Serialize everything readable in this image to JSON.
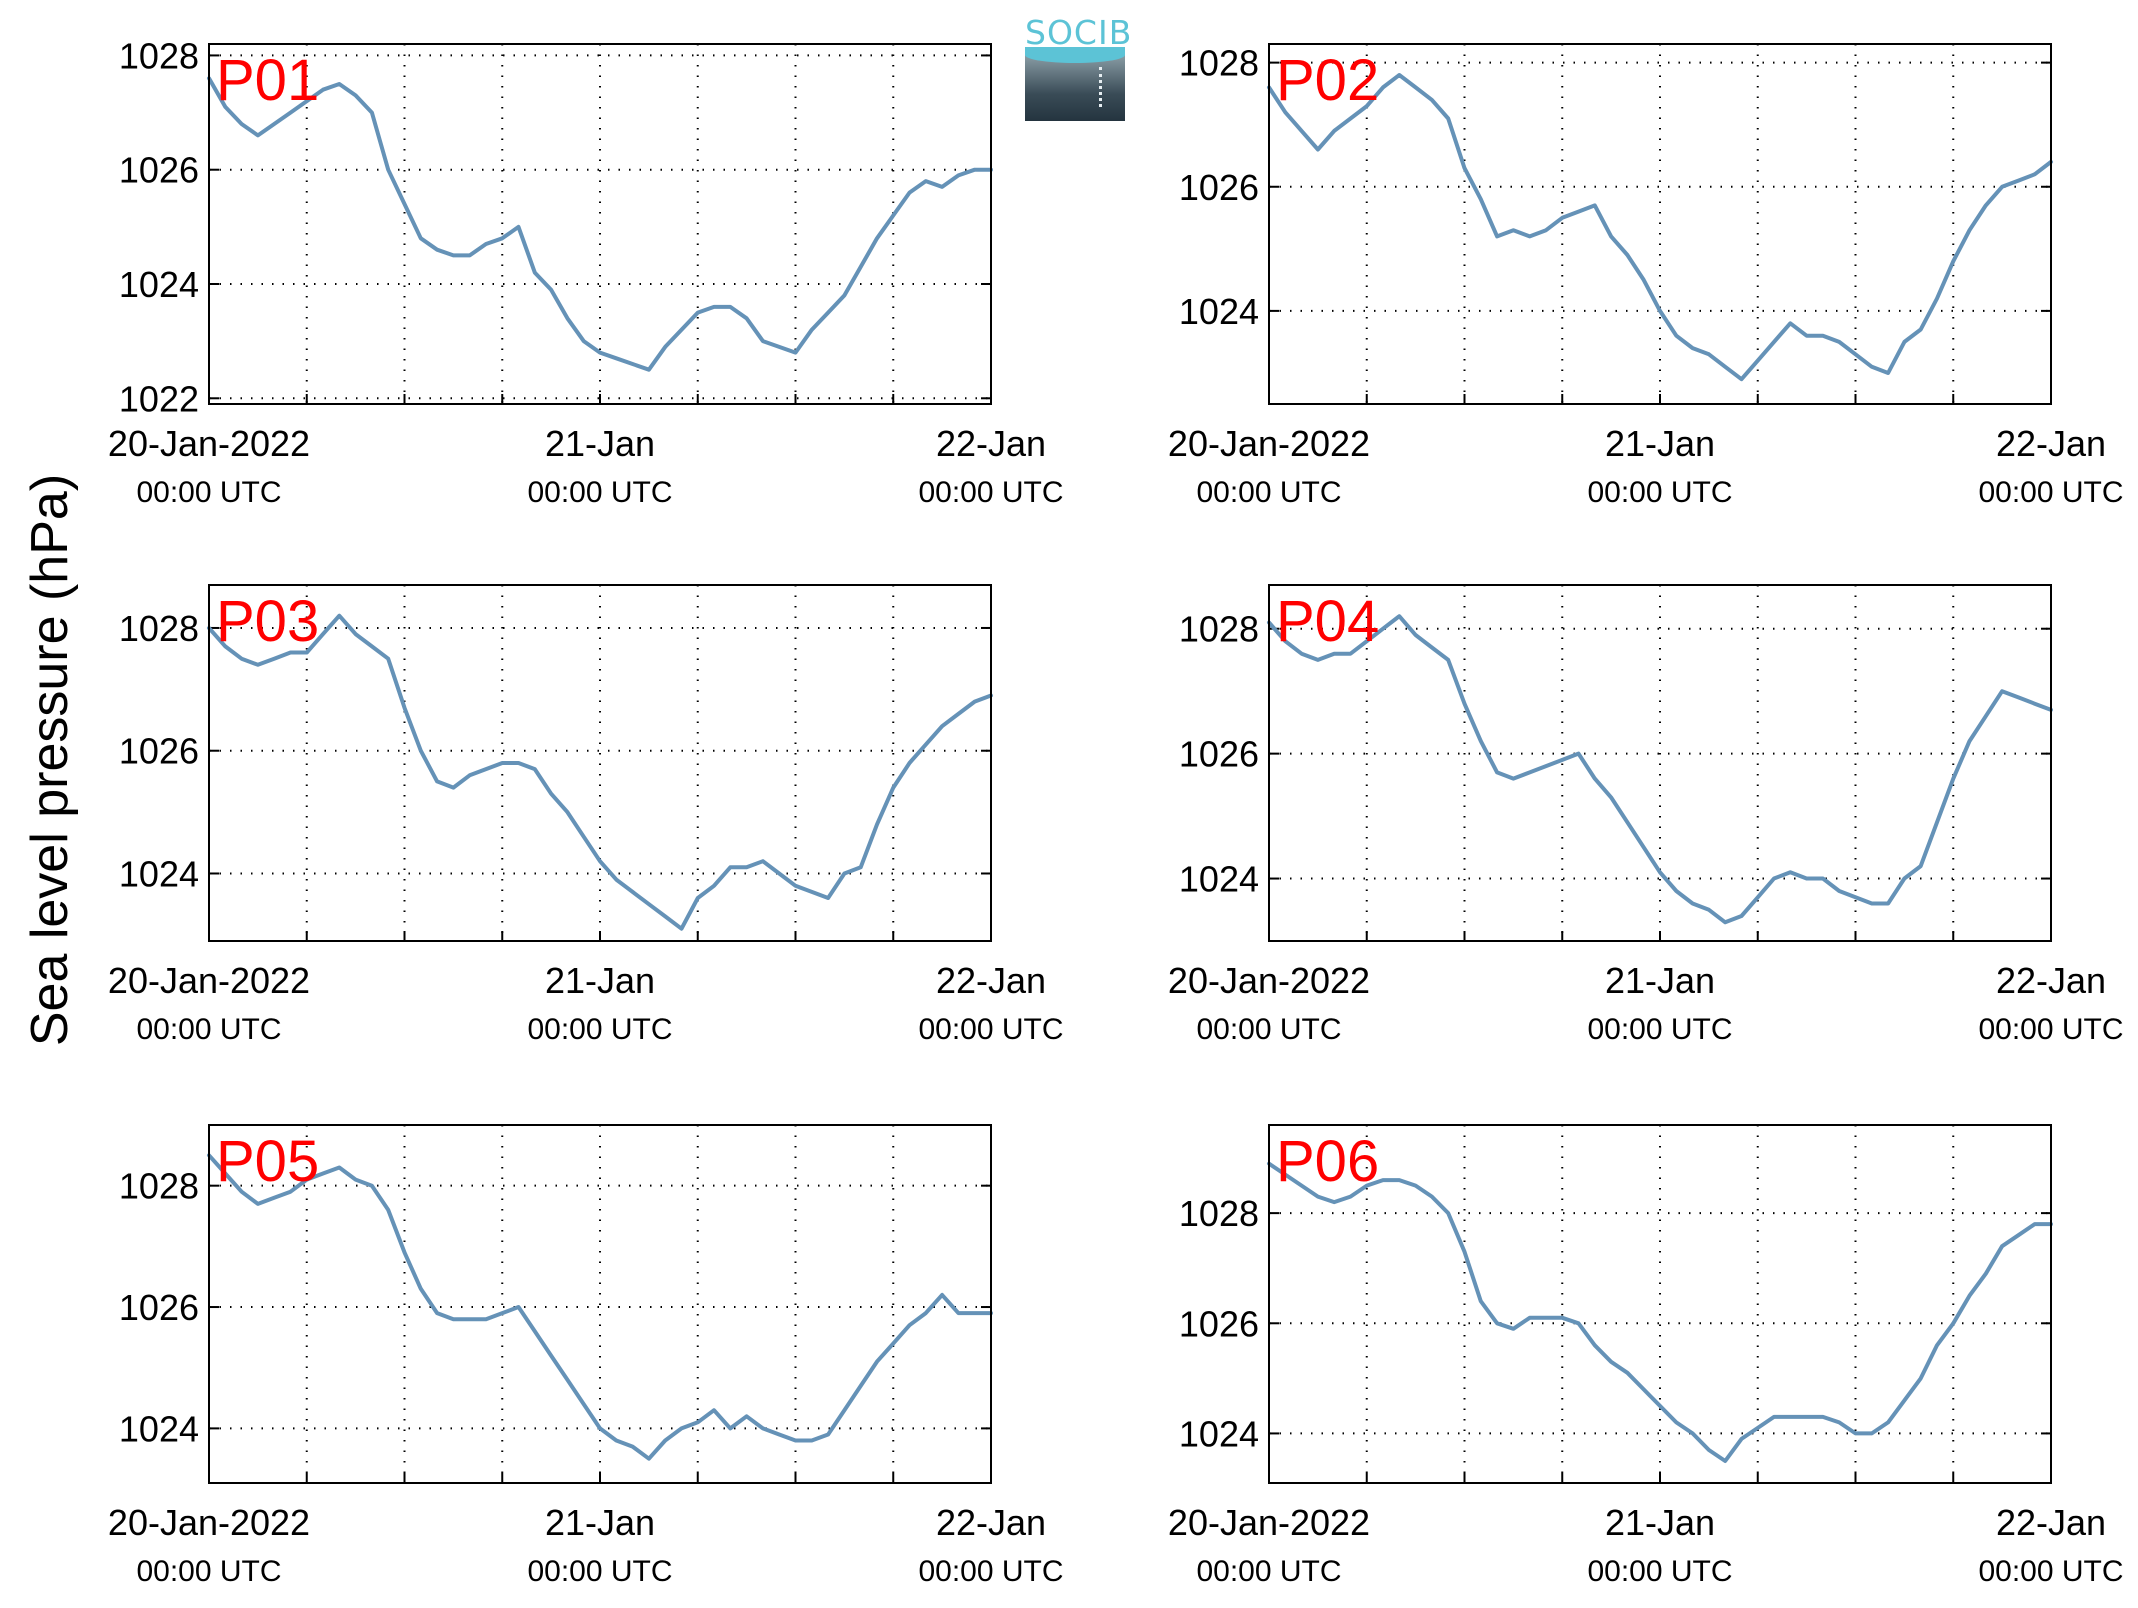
{
  "ylabel": "Sea level pressure (hPa)",
  "logo": {
    "text": "SOCIB"
  },
  "colors": {
    "line": "#6592b7",
    "station_label": "#ff0000",
    "axis": "#000000",
    "grid": "#000000"
  },
  "chart_data": [
    {
      "type": "line",
      "station": "P01",
      "x_range_hours": [
        0,
        48
      ],
      "x_ticks": [
        {
          "hour": 0,
          "date": "20-Jan-2022",
          "time": "00:00 UTC"
        },
        {
          "hour": 24,
          "date": "21-Jan",
          "time": "00:00 UTC"
        },
        {
          "hour": 48,
          "date": "22-Jan",
          "time": "00:00 UTC"
        }
      ],
      "ylim": [
        1021.9,
        1028.2
      ],
      "y_ticks": [
        1022,
        1024,
        1026,
        1028
      ],
      "grid": true,
      "x": [
        0,
        1,
        2,
        3,
        4,
        5,
        6,
        7,
        8,
        9,
        10,
        11,
        12,
        13,
        14,
        15,
        16,
        17,
        18,
        19,
        20,
        21,
        22,
        23,
        24,
        25,
        26,
        27,
        28,
        29,
        30,
        31,
        32,
        33,
        34,
        35,
        36,
        37,
        38,
        39,
        40,
        41,
        42,
        43,
        44,
        45,
        46,
        47,
        48
      ],
      "y": [
        1027.6,
        1027.1,
        1026.8,
        1026.6,
        1026.8,
        1027.0,
        1027.2,
        1027.4,
        1027.5,
        1027.3,
        1027.0,
        1026.0,
        1025.4,
        1024.8,
        1024.6,
        1024.5,
        1024.5,
        1024.7,
        1024.8,
        1025.0,
        1024.2,
        1023.9,
        1023.4,
        1023.0,
        1022.8,
        1022.7,
        1022.6,
        1022.5,
        1022.9,
        1023.2,
        1023.5,
        1023.6,
        1023.6,
        1023.4,
        1023.0,
        1022.9,
        1022.8,
        1023.2,
        1023.5,
        1023.8,
        1024.3,
        1024.8,
        1025.2,
        1025.6,
        1025.8,
        1025.7,
        1025.9,
        1026.0,
        1026.0
      ]
    },
    {
      "type": "line",
      "station": "P02",
      "x_range_hours": [
        0,
        48
      ],
      "x_ticks": [
        {
          "hour": 0,
          "date": "20-Jan-2022",
          "time": "00:00 UTC"
        },
        {
          "hour": 24,
          "date": "21-Jan",
          "time": "00:00 UTC"
        },
        {
          "hour": 48,
          "date": "22-Jan",
          "time": "00:00 UTC"
        }
      ],
      "ylim": [
        1022.5,
        1028.3
      ],
      "y_ticks": [
        1024,
        1026,
        1028
      ],
      "grid": true,
      "x": [
        0,
        1,
        2,
        3,
        4,
        5,
        6,
        7,
        8,
        9,
        10,
        11,
        12,
        13,
        14,
        15,
        16,
        17,
        18,
        19,
        20,
        21,
        22,
        23,
        24,
        25,
        26,
        27,
        28,
        29,
        30,
        31,
        32,
        33,
        34,
        35,
        36,
        37,
        38,
        39,
        40,
        41,
        42,
        43,
        44,
        45,
        46,
        47,
        48
      ],
      "y": [
        1027.6,
        1027.2,
        1026.9,
        1026.6,
        1026.9,
        1027.1,
        1027.3,
        1027.6,
        1027.8,
        1027.6,
        1027.4,
        1027.1,
        1026.3,
        1025.8,
        1025.2,
        1025.3,
        1025.2,
        1025.3,
        1025.5,
        1025.6,
        1025.7,
        1025.2,
        1024.9,
        1024.5,
        1024.0,
        1023.6,
        1023.4,
        1023.3,
        1023.1,
        1022.9,
        1023.2,
        1023.5,
        1023.8,
        1023.6,
        1023.6,
        1023.5,
        1023.3,
        1023.1,
        1023.0,
        1023.5,
        1023.7,
        1024.2,
        1024.8,
        1025.3,
        1025.7,
        1026.0,
        1026.1,
        1026.2,
        1026.4
      ]
    },
    {
      "type": "line",
      "station": "P03",
      "x_range_hours": [
        0,
        48
      ],
      "x_ticks": [
        {
          "hour": 0,
          "date": "20-Jan-2022",
          "time": "00:00 UTC"
        },
        {
          "hour": 24,
          "date": "21-Jan",
          "time": "00:00 UTC"
        },
        {
          "hour": 48,
          "date": "22-Jan",
          "time": "00:00 UTC"
        }
      ],
      "ylim": [
        1022.9,
        1028.7
      ],
      "y_ticks": [
        1024,
        1026,
        1028
      ],
      "grid": true,
      "x": [
        0,
        1,
        2,
        3,
        4,
        5,
        6,
        7,
        8,
        9,
        10,
        11,
        12,
        13,
        14,
        15,
        16,
        17,
        18,
        19,
        20,
        21,
        22,
        23,
        24,
        25,
        26,
        27,
        28,
        29,
        30,
        31,
        32,
        33,
        34,
        35,
        36,
        37,
        38,
        39,
        40,
        41,
        42,
        43,
        44,
        45,
        46,
        47,
        48
      ],
      "y": [
        1028.0,
        1027.7,
        1027.5,
        1027.4,
        1027.5,
        1027.6,
        1027.6,
        1027.9,
        1028.2,
        1027.9,
        1027.7,
        1027.5,
        1026.7,
        1026.0,
        1025.5,
        1025.4,
        1025.6,
        1025.7,
        1025.8,
        1025.8,
        1025.7,
        1025.3,
        1025.0,
        1024.6,
        1024.2,
        1023.9,
        1023.7,
        1023.5,
        1023.3,
        1023.1,
        1023.6,
        1023.8,
        1024.1,
        1024.1,
        1024.2,
        1024.0,
        1023.8,
        1023.7,
        1023.6,
        1024.0,
        1024.1,
        1024.8,
        1025.4,
        1025.8,
        1026.1,
        1026.4,
        1026.6,
        1026.8,
        1026.9
      ]
    },
    {
      "type": "line",
      "station": "P04",
      "x_range_hours": [
        0,
        48
      ],
      "x_ticks": [
        {
          "hour": 0,
          "date": "20-Jan-2022",
          "time": "00:00 UTC"
        },
        {
          "hour": 24,
          "date": "21-Jan",
          "time": "00:00 UTC"
        },
        {
          "hour": 48,
          "date": "22-Jan",
          "time": "00:00 UTC"
        }
      ],
      "ylim": [
        1023.0,
        1028.7
      ],
      "y_ticks": [
        1024,
        1026,
        1028
      ],
      "grid": true,
      "x": [
        0,
        1,
        2,
        3,
        4,
        5,
        6,
        7,
        8,
        9,
        10,
        11,
        12,
        13,
        14,
        15,
        16,
        17,
        18,
        19,
        20,
        21,
        22,
        23,
        24,
        25,
        26,
        27,
        28,
        29,
        30,
        31,
        32,
        33,
        34,
        35,
        36,
        37,
        38,
        39,
        40,
        41,
        42,
        43,
        44,
        45,
        46,
        47,
        48
      ],
      "y": [
        1028.1,
        1027.8,
        1027.6,
        1027.5,
        1027.6,
        1027.6,
        1027.8,
        1028.0,
        1028.2,
        1027.9,
        1027.7,
        1027.5,
        1026.8,
        1026.2,
        1025.7,
        1025.6,
        1025.7,
        1025.8,
        1025.9,
        1026.0,
        1025.6,
        1025.3,
        1024.9,
        1024.5,
        1024.1,
        1023.8,
        1023.6,
        1023.5,
        1023.3,
        1023.4,
        1023.7,
        1024.0,
        1024.1,
        1024.0,
        1024.0,
        1023.8,
        1023.7,
        1023.6,
        1023.6,
        1024.0,
        1024.2,
        1024.9,
        1025.6,
        1026.2,
        1026.6,
        1027.0,
        1026.9,
        1026.8,
        1026.7
      ]
    },
    {
      "type": "line",
      "station": "P05",
      "x_range_hours": [
        0,
        48
      ],
      "x_ticks": [
        {
          "hour": 0,
          "date": "20-Jan-2022",
          "time": "00:00 UTC"
        },
        {
          "hour": 24,
          "date": "21-Jan",
          "time": "00:00 UTC"
        },
        {
          "hour": 48,
          "date": "22-Jan",
          "time": "00:00 UTC"
        }
      ],
      "ylim": [
        1023.1,
        1029.0
      ],
      "y_ticks": [
        1024,
        1026,
        1028
      ],
      "grid": true,
      "x": [
        0,
        1,
        2,
        3,
        4,
        5,
        6,
        7,
        8,
        9,
        10,
        11,
        12,
        13,
        14,
        15,
        16,
        17,
        18,
        19,
        20,
        21,
        22,
        23,
        24,
        25,
        26,
        27,
        28,
        29,
        30,
        31,
        32,
        33,
        34,
        35,
        36,
        37,
        38,
        39,
        40,
        41,
        42,
        43,
        44,
        45,
        46,
        47,
        48
      ],
      "y": [
        1028.5,
        1028.2,
        1027.9,
        1027.7,
        1027.8,
        1027.9,
        1028.1,
        1028.2,
        1028.3,
        1028.1,
        1028.0,
        1027.6,
        1026.9,
        1026.3,
        1025.9,
        1025.8,
        1025.8,
        1025.8,
        1025.9,
        1026.0,
        1025.6,
        1025.2,
        1024.8,
        1024.4,
        1024.0,
        1023.8,
        1023.7,
        1023.5,
        1023.8,
        1024.0,
        1024.1,
        1024.3,
        1024.0,
        1024.2,
        1024.0,
        1023.9,
        1023.8,
        1023.8,
        1023.9,
        1024.3,
        1024.7,
        1025.1,
        1025.4,
        1025.7,
        1025.9,
        1026.2,
        1025.9,
        1025.9,
        1025.9
      ]
    },
    {
      "type": "line",
      "station": "P06",
      "x_range_hours": [
        0,
        48
      ],
      "x_ticks": [
        {
          "hour": 0,
          "date": "20-Jan-2022",
          "time": "00:00 UTC"
        },
        {
          "hour": 24,
          "date": "21-Jan",
          "time": "00:00 UTC"
        },
        {
          "hour": 48,
          "date": "22-Jan",
          "time": "00:00 UTC"
        }
      ],
      "ylim": [
        1023.1,
        1029.6
      ],
      "y_ticks": [
        1024,
        1026,
        1028
      ],
      "grid": true,
      "x": [
        0,
        1,
        2,
        3,
        4,
        5,
        6,
        7,
        8,
        9,
        10,
        11,
        12,
        13,
        14,
        15,
        16,
        17,
        18,
        19,
        20,
        21,
        22,
        23,
        24,
        25,
        26,
        27,
        28,
        29,
        30,
        31,
        32,
        33,
        34,
        35,
        36,
        37,
        38,
        39,
        40,
        41,
        42,
        43,
        44,
        45,
        46,
        47,
        48
      ],
      "y": [
        1028.9,
        1028.7,
        1028.5,
        1028.3,
        1028.2,
        1028.3,
        1028.5,
        1028.6,
        1028.6,
        1028.5,
        1028.3,
        1028.0,
        1027.3,
        1026.4,
        1026.0,
        1025.9,
        1026.1,
        1026.1,
        1026.1,
        1026.0,
        1025.6,
        1025.3,
        1025.1,
        1024.8,
        1024.5,
        1024.2,
        1024.0,
        1023.7,
        1023.5,
        1023.9,
        1024.1,
        1024.3,
        1024.3,
        1024.3,
        1024.3,
        1024.2,
        1024.0,
        1024.0,
        1024.2,
        1024.6,
        1025.0,
        1025.6,
        1026.0,
        1026.5,
        1026.9,
        1027.4,
        1027.6,
        1027.8,
        1027.8
      ]
    }
  ]
}
